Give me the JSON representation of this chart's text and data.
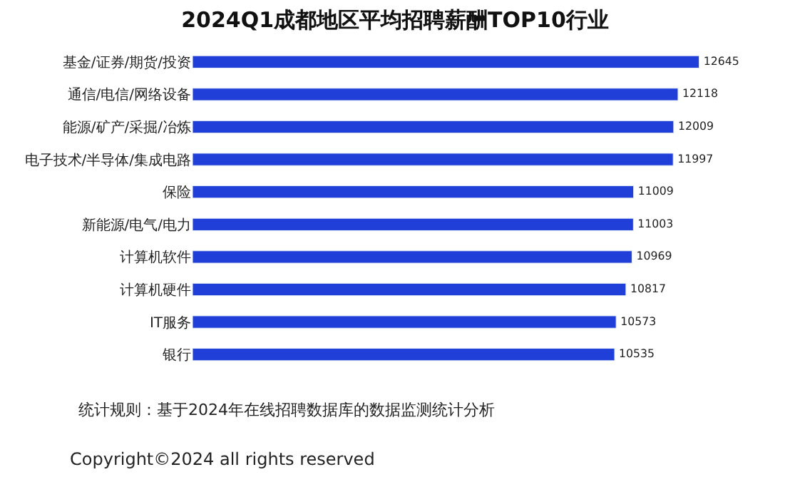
{
  "chart_data": {
    "type": "bar",
    "orientation": "horizontal",
    "title": "2024Q1成都地区平均招聘薪酬TOP10行业",
    "categories": [
      "基金/证券/期货/投资",
      "通信/电信/网络设备",
      "能源/矿产/采掘/冶炼",
      "电子技术/半导体/集成电路",
      "保险",
      "新能源/电气/电力",
      "计算机软件",
      "计算机硬件",
      "IT服务",
      "银行"
    ],
    "series": [
      {
        "color": "#1f3fd8",
        "values": [
          12645,
          12118,
          12009,
          11997,
          11009,
          11003,
          10969,
          10817,
          10573,
          10535
        ]
      }
    ],
    "data_labels": true,
    "legend": false,
    "annotations": [
      "统计规则：基于2024年在线招聘数据库的数据监测统计分析",
      "Copyright©2024 all rights reserved"
    ]
  }
}
